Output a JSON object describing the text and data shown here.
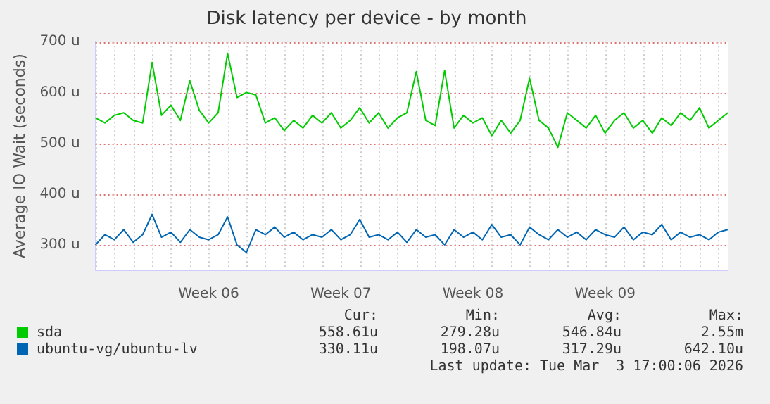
{
  "chart_data": {
    "type": "line",
    "title": "Disk latency per device - by month",
    "ylabel": "Average IO Wait (seconds)",
    "categories": [
      null,
      null,
      null,
      null,
      null,
      null,
      null,
      null,
      null,
      null,
      null,
      null,
      "Week 06",
      null,
      null,
      null,
      null,
      null,
      null,
      null,
      null,
      null,
      null,
      null,
      null,
      null,
      "Week 07",
      null,
      null,
      null,
      null,
      null,
      null,
      null,
      null,
      null,
      null,
      null,
      null,
      null,
      "Week 08",
      null,
      null,
      null,
      null,
      null,
      null,
      null,
      null,
      null,
      null,
      null,
      null,
      null,
      "Week 09",
      null,
      null,
      null,
      null,
      null,
      null,
      null,
      null,
      null,
      null,
      null,
      null,
      null
    ],
    "ylim": [
      250,
      700
    ],
    "yticks": [
      {
        "value": 300,
        "label": "300 u"
      },
      {
        "value": 400,
        "label": "400 u"
      },
      {
        "value": 500,
        "label": "500 u"
      },
      {
        "value": 600,
        "label": "600 u"
      },
      {
        "value": 700,
        "label": "700 u"
      }
    ],
    "series": [
      {
        "name": "sda",
        "color": "#00cc00",
        "values": [
          550,
          540,
          555,
          560,
          545,
          540,
          659,
          555,
          575,
          545,
          623,
          565,
          540,
          560,
          677,
          590,
          600,
          595,
          540,
          550,
          525,
          545,
          530,
          555,
          540,
          560,
          530,
          545,
          570,
          540,
          560,
          530,
          550,
          560,
          641,
          545,
          535,
          643,
          530,
          555,
          540,
          550,
          515,
          545,
          520,
          545,
          628,
          545,
          530,
          492,
          560,
          545,
          530,
          555,
          520,
          545,
          560,
          530,
          545,
          520,
          550,
          535,
          560,
          545,
          570,
          530,
          545,
          560
        ]
      },
      {
        "name": "ubuntu-vg/ubuntu-lv",
        "color": "#0066b3",
        "values": [
          300,
          320,
          310,
          330,
          305,
          320,
          360,
          315,
          325,
          305,
          330,
          315,
          310,
          320,
          355,
          300,
          285,
          330,
          320,
          335,
          315,
          325,
          310,
          320,
          315,
          330,
          310,
          320,
          350,
          315,
          320,
          310,
          325,
          305,
          330,
          315,
          320,
          300,
          330,
          315,
          325,
          310,
          340,
          315,
          320,
          300,
          335,
          320,
          310,
          330,
          315,
          325,
          310,
          330,
          320,
          315,
          335,
          310,
          325,
          320,
          340,
          310,
          325,
          315,
          320,
          310,
          325,
          330
        ]
      }
    ],
    "annotations": [
      "Cur:",
      "Min:",
      "Avg:",
      "Max:",
      "558.61u",
      "279.28u",
      "546.84u",
      "2.55m",
      "330.11u",
      "198.07u",
      "317.29u",
      "642.10u",
      "Last update: Tue Mar  3 17:00:06 2026"
    ],
    "grid": true,
    "legend": "bottom",
    "marker": "none",
    "line_style": "solid"
  }
}
